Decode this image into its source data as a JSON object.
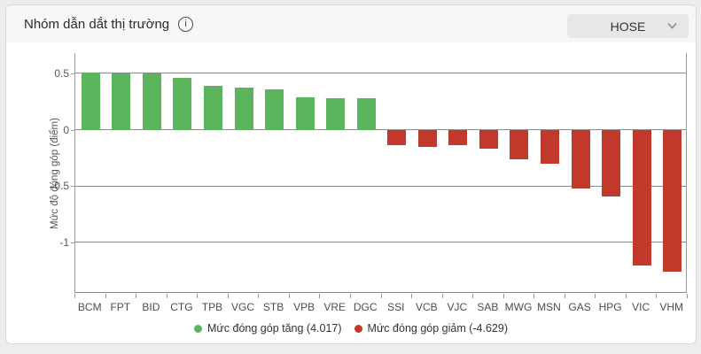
{
  "header": {
    "title": "Nhóm dẫn dắt thị trường",
    "exchange_selector": {
      "value": "HOSE"
    }
  },
  "chart_data": {
    "type": "bar",
    "title": "Nhóm dẫn dắt thị trường",
    "categories": [
      "BCM",
      "FPT",
      "BID",
      "CTG",
      "TPB",
      "VGC",
      "STB",
      "VPB",
      "VRE",
      "DGC",
      "SSI",
      "VCB",
      "VJC",
      "SAB",
      "MWG",
      "MSN",
      "GAS",
      "HPG",
      "VIC",
      "VHM"
    ],
    "values": [
      0.51,
      0.5,
      0.5,
      0.46,
      0.39,
      0.37,
      0.36,
      0.29,
      0.28,
      0.28,
      -0.14,
      -0.15,
      -0.14,
      -0.17,
      -0.26,
      -0.3,
      -0.52,
      -0.59,
      -1.21,
      -1.26
    ],
    "xlabel": "",
    "ylabel": "Mức độ đóng góp (điểm)",
    "ylim": [
      -1.45,
      0.68
    ],
    "yticks": [
      0.5,
      0,
      -0.5,
      -1
    ],
    "ytick_labels": [
      "0.5",
      "0",
      "-0.5",
      "-1"
    ],
    "grid": "horizontal",
    "legend_position": "bottom-center",
    "colors": {
      "positive": "#5cb55c",
      "negative": "#c0392b"
    },
    "legend": [
      {
        "label": "Mức đóng góp tăng (4.017)",
        "color": "#5cb55c"
      },
      {
        "label": "Mức đóng góp giảm (-4.629)",
        "color": "#c0392b"
      }
    ]
  }
}
